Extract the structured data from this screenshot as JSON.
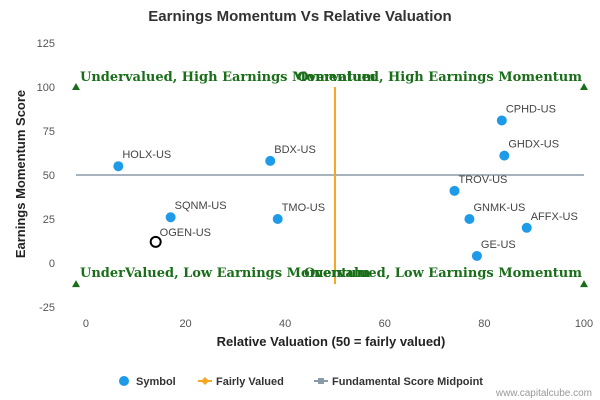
{
  "chart_data": {
    "type": "scatter",
    "title": "Earnings Momentum Vs Relative Valuation",
    "xlabel": "Relative Valuation (50 = fairly valued)",
    "ylabel": "Earnings Momentum Score",
    "xlim": [
      -2,
      100
    ],
    "ylim": [
      -25,
      125
    ],
    "xticks": [
      0,
      20,
      40,
      60,
      80,
      100
    ],
    "yticks": [
      -25,
      0,
      25,
      50,
      75,
      100,
      125
    ],
    "fairly_valued_x": 50,
    "midpoint_y": 50,
    "series": [
      {
        "name": "Symbol",
        "color": "#1e9be8",
        "points": [
          {
            "label": "HOLX-US",
            "x": 6.5,
            "y": 55
          },
          {
            "label": "BDX-US",
            "x": 37,
            "y": 58
          },
          {
            "label": "SQNM-US",
            "x": 17,
            "y": 26
          },
          {
            "label": "TMO-US",
            "x": 38.5,
            "y": 25
          },
          {
            "label": "CPHD-US",
            "x": 83.5,
            "y": 81
          },
          {
            "label": "GHDX-US",
            "x": 84,
            "y": 61
          },
          {
            "label": "TROV-US",
            "x": 74,
            "y": 41
          },
          {
            "label": "GNMK-US",
            "x": 77,
            "y": 25
          },
          {
            "label": "AFFX-US",
            "x": 88.5,
            "y": 20
          },
          {
            "label": "GE-US",
            "x": 78.5,
            "y": 4
          }
        ]
      }
    ],
    "highlight": {
      "label": "OGEN-US",
      "x": 14,
      "y": 12
    },
    "quadrant_labels": {
      "top_left": "Undervalued, High Earnings Momentum",
      "top_right": "Overvalued, High Earnings Momentum",
      "bottom_left": "UnderValued, Low Earnings Momentum",
      "bottom_right": "Overvalued, Low Earnings Momentum"
    },
    "legend": {
      "position": "bottom",
      "items": [
        {
          "label": "Symbol",
          "color": "#1e9be8",
          "marker": "circle"
        },
        {
          "label": "Fairly Valued",
          "color": "#f5a623",
          "marker": "line-diamond"
        },
        {
          "label": "Fundamental Score Midpoint",
          "color": "#8a9aa8",
          "marker": "line-square"
        }
      ]
    },
    "grid": false
  },
  "credit": "www.capitalcube.com"
}
